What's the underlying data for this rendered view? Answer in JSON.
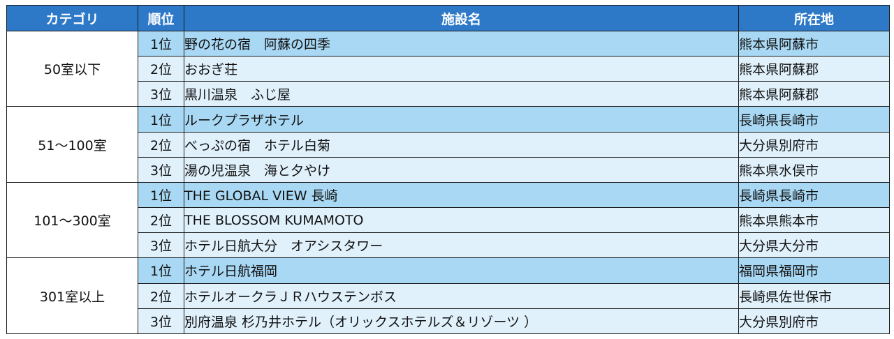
{
  "header": {
    "category": "カテゴリ",
    "rank": "順位",
    "facility": "施設名",
    "location": "所在地"
  },
  "groups": [
    {
      "category": "50室以下",
      "rows": [
        {
          "rank": "1位",
          "name": "野の花の宿　阿蘇の四季",
          "location": "熊本県阿蘇市"
        },
        {
          "rank": "2位",
          "name": "おおぎ荘",
          "location": "熊本県阿蘇郡"
        },
        {
          "rank": "3位",
          "name": "黒川温泉　ふじ屋",
          "location": "熊本県阿蘇郡"
        }
      ]
    },
    {
      "category": "51～100室",
      "rows": [
        {
          "rank": "1位",
          "name": "ルークプラザホテル",
          "location": "長崎県長崎市"
        },
        {
          "rank": "2位",
          "name": "べっぷの宿　ホテル白菊",
          "location": "大分県別府市"
        },
        {
          "rank": "3位",
          "name": "湯の児温泉　海と夕やけ",
          "location": "熊本県水俣市"
        }
      ]
    },
    {
      "category": "101～300室",
      "rows": [
        {
          "rank": "1位",
          "name": "THE GLOBAL VIEW 長崎",
          "location": "長崎県長崎市"
        },
        {
          "rank": "2位",
          "name": "THE BLOSSOM KUMAMOTO",
          "location": "熊本県熊本市"
        },
        {
          "rank": "3位",
          "name": "ホテル日航大分　オアシスタワー",
          "location": "大分県大分市"
        }
      ]
    },
    {
      "category": "301室以上",
      "rows": [
        {
          "rank": "1位",
          "name": "ホテル日航福岡",
          "location": "福岡県福岡市"
        },
        {
          "rank": "2位",
          "name": "ホテルオークラＪＲハウステンボス",
          "location": "長崎県佐世保市"
        },
        {
          "rank": "3位",
          "name": "別府温泉 杉乃井ホテル（オリックスホテルズ＆リゾーツ ）",
          "location": "大分県別府市"
        }
      ]
    }
  ],
  "colors": {
    "header_bg": "#2d79c7",
    "rank1_bg": "#a9d8f4",
    "rank23_bg": "#e0f1fc",
    "border": "#1a1a1a"
  }
}
